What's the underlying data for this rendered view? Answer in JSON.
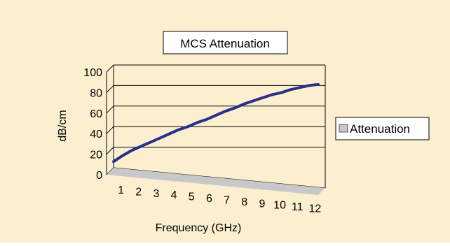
{
  "chart_data": {
    "type": "line",
    "title": "MCS Attenuation",
    "xlabel": "Frequency (GHz)",
    "ylabel": "dB/cm",
    "ylim": [
      0,
      100
    ],
    "yticks": [
      0,
      20,
      40,
      60,
      80,
      100
    ],
    "categories": [
      "1",
      "2",
      "3",
      "4",
      "5",
      "6",
      "7",
      "8",
      "9",
      "10",
      "11",
      "12"
    ],
    "series": [
      {
        "name": "Attenuation",
        "x": [
          1,
          1.5,
          2,
          2.5,
          3,
          3.5,
          4,
          4.5,
          5,
          5.5,
          6,
          6.5,
          7,
          7.5,
          8,
          8.5,
          9,
          9.5,
          10,
          10.5,
          11,
          11.5,
          12
        ],
        "values": [
          6,
          12,
          17,
          21,
          25,
          29,
          33,
          37,
          40,
          44,
          47,
          51,
          55,
          58,
          62,
          65,
          68,
          71,
          73,
          76,
          78,
          80,
          81
        ]
      }
    ],
    "grid": true,
    "legend": "right",
    "colors": {
      "background": "#fbefcf",
      "line": "#2a2f8a",
      "floor": "#c8c8c8",
      "grid": "#000000"
    }
  }
}
